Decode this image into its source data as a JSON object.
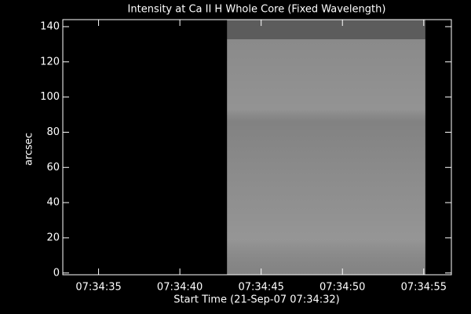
{
  "chart_data": {
    "type": "image",
    "title": "Intensity at Ca II H Whole Core (Fixed Wavelength)",
    "x_label": "Start Time (21-Sep-07 07:34:32)",
    "y_label": "arcsec",
    "xlim": [
      0.8,
      24.7
    ],
    "xticks": [
      {
        "value": 3,
        "label": "07:34:35"
      },
      {
        "value": 8,
        "label": "07:34:40"
      },
      {
        "value": 13,
        "label": "07:34:45"
      },
      {
        "value": 18,
        "label": "07:34:50"
      },
      {
        "value": 23,
        "label": "07:34:55"
      }
    ],
    "ylim": [
      -1,
      144
    ],
    "yticks": [
      0,
      20,
      40,
      60,
      80,
      100,
      120,
      140
    ],
    "regions": [
      {
        "x": [
          10.9,
          23.1
        ],
        "y": [
          -1,
          133
        ],
        "color": "#8a8a8a"
      },
      {
        "x": [
          10.9,
          23.1
        ],
        "y": [
          133,
          144
        ],
        "color": "#5c5c5c"
      }
    ]
  }
}
